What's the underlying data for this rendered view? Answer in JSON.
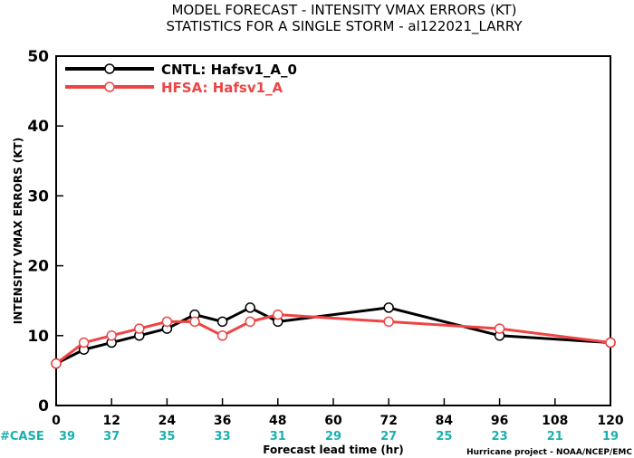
{
  "chart_data": {
    "type": "line",
    "title_line1": "MODEL FORECAST - INTENSITY VMAX ERRORS (KT)",
    "title_line2": "STATISTICS FOR A SINGLE STORM - al122021_LARRY",
    "xlabel": "Forecast lead time (hr)",
    "ylabel": "INTENSITY VMAX ERRORS (KT)",
    "xlim": [
      0,
      120
    ],
    "ylim": [
      0,
      50
    ],
    "x_ticks": [
      "0",
      "12",
      "24",
      "36",
      "48",
      "60",
      "72",
      "84",
      "96",
      "108",
      "120"
    ],
    "y_ticks": [
      "0",
      "10",
      "20",
      "30",
      "40",
      "50"
    ],
    "case_label": "#CASE",
    "case_counts": [
      "39",
      "37",
      "35",
      "33",
      "31",
      "29",
      "27",
      "25",
      "23",
      "21",
      "19"
    ],
    "credit": "Hurricane project - NOAA/NCEP/EMC",
    "grid": false,
    "legend_position": "top-left",
    "series": [
      {
        "name": "CNTL: Hafsv1_A_0",
        "color": "#000000",
        "x": [
          0,
          6,
          12,
          18,
          24,
          30,
          36,
          42,
          48,
          72,
          96,
          120
        ],
        "y": [
          6,
          8,
          9,
          10,
          11,
          13,
          12,
          14,
          12,
          14,
          10,
          9
        ]
      },
      {
        "name": "HFSA: Hafsv1_A",
        "color": "#ef4444",
        "x": [
          0,
          6,
          12,
          18,
          24,
          30,
          36,
          42,
          48,
          72,
          96,
          120
        ],
        "y": [
          6,
          9,
          10,
          11,
          12,
          12,
          10,
          12,
          13,
          12,
          11,
          9
        ]
      }
    ]
  }
}
